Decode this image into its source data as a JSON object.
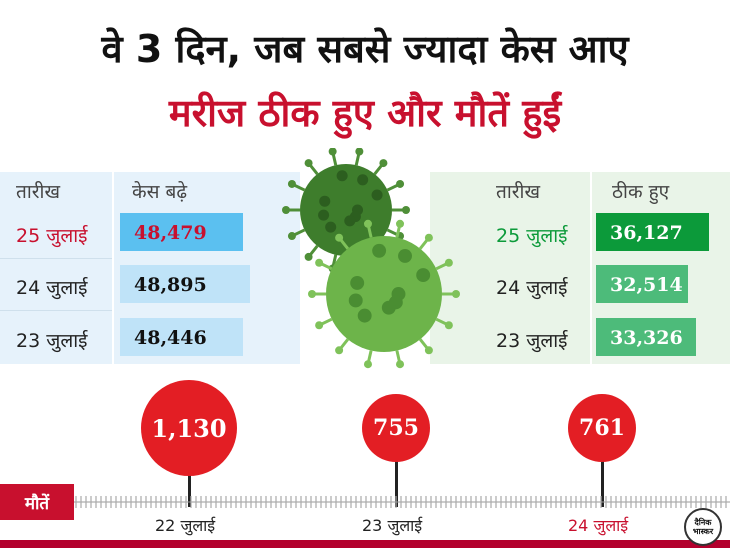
{
  "headline": {
    "line1": "वे 3 दिन, जब सबसे ज्यादा केस आए",
    "line2": "मरीज ठीक हुए और मौतें हुईं"
  },
  "chart_data": [
    {
      "type": "table",
      "columns": [
        "तारीख",
        "केस बढ़े"
      ],
      "rows": [
        {
          "date": "25 जुलाई",
          "value": "48,479"
        },
        {
          "date": "24 जुलाई",
          "value": "48,895"
        },
        {
          "date": "23 जुलाई",
          "value": "48,446"
        }
      ]
    },
    {
      "type": "table",
      "columns": [
        "तारीख",
        "ठीक हुए"
      ],
      "rows": [
        {
          "date": "25 जुलाई",
          "value": "36,127"
        },
        {
          "date": "24 जुलाई",
          "value": "32,514"
        },
        {
          "date": "23 जुलाई",
          "value": "33,326"
        }
      ]
    },
    {
      "type": "scatter",
      "ylabel": "मौतें",
      "categories": [
        "22 जुलाई",
        "23 जुलाई",
        "24 जुलाई"
      ],
      "values": [
        1130,
        755,
        761
      ],
      "labels": [
        "1,130",
        "755",
        "761"
      ]
    }
  ],
  "logo_text": "दैनिक भास्कर",
  "colors": {
    "accent_red": "#c8102e",
    "circle_red": "#e31e24",
    "cases_blue": "#bfe3f8",
    "cases_highlight": "#5bc0f0",
    "recovered_dark": "#0c9a3a",
    "recovered_light": "#4dbb7a",
    "virus_green": "#5a9f3a"
  },
  "icons": [
    "coronavirus-icon"
  ]
}
